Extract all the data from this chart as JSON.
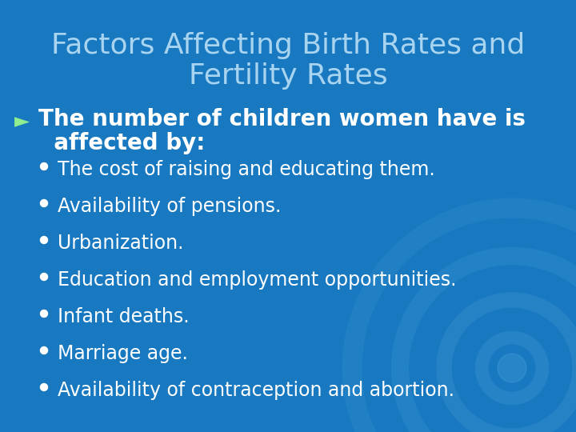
{
  "title_line1": "Factors Affecting Birth Rates and",
  "title_line2": "Fertility Rates",
  "title_color": "#a8d4f0",
  "background_color": "#1878c0",
  "main_bullet_symbol": "►",
  "main_bullet_color": "#90ee90",
  "main_text_line1": "The number of children women have is",
  "main_text_line2": "  affected by:",
  "main_text_color": "#ffffff",
  "sub_bullet_color": "#ffffff",
  "sub_items": [
    "The cost of raising and educating them.",
    "Availability of pensions.",
    "Urbanization.",
    "Education and employment opportunities.",
    "Infant deaths.",
    "Marriage age.",
    "Availability of contraception and abortion."
  ],
  "sub_text_color": "#ffffff",
  "circle_color": "#5aacde",
  "figwidth": 7.2,
  "figheight": 5.4,
  "dpi": 100
}
